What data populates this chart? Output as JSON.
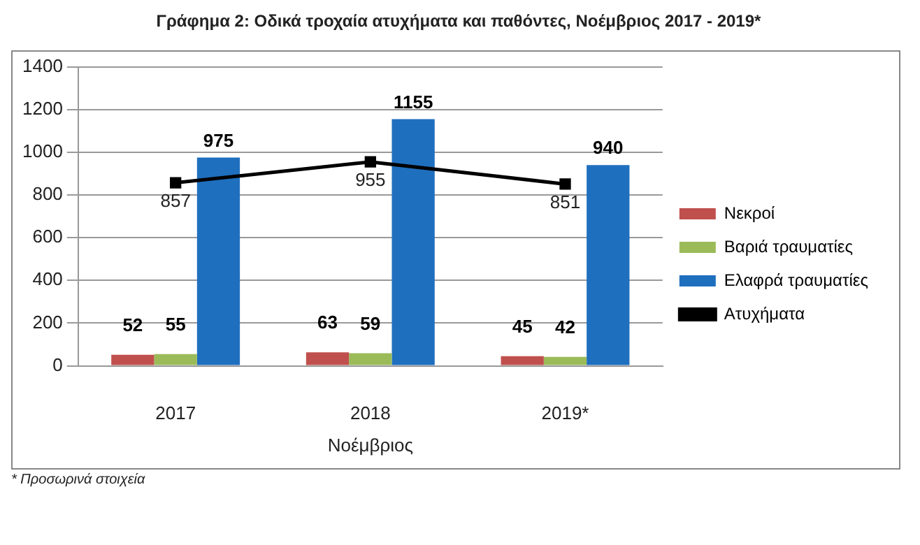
{
  "chart_data": {
    "type": "bar",
    "title": "Γράφημα 2: Οδικά τροχαία ατυχήματα και παθόντες, Νοέμβριος 2017 - 2019*",
    "xlabel": "Νοέμβριος",
    "categories": [
      "2017",
      "2018",
      "2019*"
    ],
    "series": [
      {
        "name": "Νεκροί",
        "color": "#c0504d",
        "values": [
          52,
          63,
          45
        ]
      },
      {
        "name": "Βαριά τραυματίες",
        "color": "#9bbb59",
        "values": [
          55,
          59,
          42
        ]
      },
      {
        "name": "Ελαφρά τραυματίες",
        "color": "#1f6fbf",
        "values": [
          975,
          1155,
          940
        ]
      },
      {
        "name": "Ατυχήματα",
        "type": "line",
        "color": "#000000",
        "values": [
          857,
          955,
          851
        ],
        "marker": "square"
      }
    ],
    "ylim": [
      0,
      1400
    ],
    "yticks": [
      0,
      200,
      400,
      600,
      800,
      1000,
      1200,
      1400
    ],
    "grid": "y",
    "legend": "right",
    "data_labels": true,
    "annotations": [
      "* Προσωρινά στοιχεία"
    ]
  }
}
